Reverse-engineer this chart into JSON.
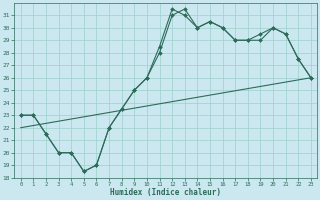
{
  "xlabel": "Humidex (Indice chaleur)",
  "bg_color": "#cbe8f0",
  "grid_color": "#9dcfcc",
  "line_color": "#2d6b5a",
  "ylim": [
    18,
    32
  ],
  "xlim": [
    -0.5,
    23.5
  ],
  "yticks": [
    18,
    19,
    20,
    21,
    22,
    23,
    24,
    25,
    26,
    27,
    28,
    29,
    30,
    31
  ],
  "xticks": [
    0,
    1,
    2,
    3,
    4,
    5,
    6,
    7,
    8,
    9,
    10,
    11,
    12,
    13,
    14,
    15,
    16,
    17,
    18,
    19,
    20,
    21,
    22,
    23
  ],
  "series1_x": [
    0,
    1,
    2,
    3,
    4,
    5,
    6,
    7,
    8,
    9,
    10,
    11,
    12,
    13,
    14,
    15,
    16,
    17,
    18,
    19,
    20,
    21,
    22,
    23
  ],
  "series1_y": [
    23,
    23,
    21.5,
    20,
    20,
    18.5,
    19,
    22,
    23.5,
    25,
    26,
    28.5,
    31.5,
    31,
    30,
    30.5,
    30,
    29,
    29,
    29,
    30,
    29.5,
    27.5,
    26
  ],
  "series2_x": [
    0,
    1,
    2,
    3,
    4,
    5,
    6,
    7,
    8,
    9,
    10,
    11,
    12,
    13,
    14,
    15,
    16,
    17,
    18,
    19,
    20,
    21,
    22,
    23
  ],
  "series2_y": [
    23,
    23,
    21.5,
    20,
    20,
    18.5,
    19,
    22,
    23.5,
    25,
    26,
    28,
    31,
    31.5,
    30,
    30.5,
    30,
    29,
    29,
    29.5,
    30,
    29.5,
    27.5,
    26
  ],
  "series3_x": [
    0,
    23
  ],
  "series3_y": [
    22,
    26
  ],
  "font_color": "#2d6b5a"
}
